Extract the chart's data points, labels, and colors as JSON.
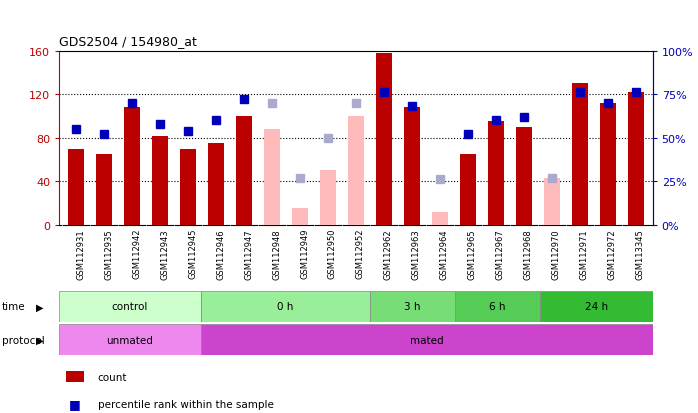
{
  "title": "GDS2504 / 154980_at",
  "samples": [
    "GSM112931",
    "GSM112935",
    "GSM112942",
    "GSM112943",
    "GSM112945",
    "GSM112946",
    "GSM112947",
    "GSM112948",
    "GSM112949",
    "GSM112950",
    "GSM112952",
    "GSM112962",
    "GSM112963",
    "GSM112964",
    "GSM112965",
    "GSM112967",
    "GSM112968",
    "GSM112970",
    "GSM112971",
    "GSM112972",
    "GSM113345"
  ],
  "count_values": [
    70,
    65,
    108,
    82,
    70,
    75,
    100,
    null,
    null,
    null,
    null,
    158,
    108,
    null,
    65,
    95,
    90,
    null,
    130,
    112,
    122
  ],
  "count_absent": [
    null,
    null,
    null,
    null,
    null,
    null,
    null,
    88,
    15,
    50,
    100,
    null,
    null,
    12,
    null,
    null,
    null,
    43,
    null,
    null,
    null
  ],
  "rank_values": [
    55,
    52,
    70,
    58,
    54,
    60,
    72,
    null,
    null,
    null,
    null,
    76,
    68,
    null,
    52,
    60,
    62,
    null,
    76,
    70,
    76
  ],
  "rank_absent": [
    null,
    null,
    null,
    null,
    null,
    null,
    null,
    70,
    27,
    50,
    70,
    null,
    null,
    26,
    null,
    null,
    null,
    27,
    null,
    null,
    null
  ],
  "ylim_left": [
    0,
    160
  ],
  "ylim_right": [
    0,
    100
  ],
  "yticks_left": [
    0,
    40,
    80,
    120,
    160
  ],
  "yticks_right": [
    0,
    25,
    50,
    75,
    100
  ],
  "ytick_labels_left": [
    "0",
    "40",
    "80",
    "120",
    "160"
  ],
  "ytick_labels_right": [
    "0%",
    "25%",
    "50%",
    "75%",
    "100%"
  ],
  "bar_color": "#bb0000",
  "bar_absent_color": "#ffbbbb",
  "rank_color": "#0000bb",
  "rank_absent_color": "#aaaacc",
  "bg_color": "#ffffff",
  "time_groups": [
    {
      "label": "control",
      "start": 0,
      "end": 5,
      "color": "#ccffcc"
    },
    {
      "label": "0 h",
      "start": 5,
      "end": 11,
      "color": "#99ee99"
    },
    {
      "label": "3 h",
      "start": 11,
      "end": 14,
      "color": "#77dd77"
    },
    {
      "label": "6 h",
      "start": 14,
      "end": 17,
      "color": "#55cc55"
    },
    {
      "label": "24 h",
      "start": 17,
      "end": 21,
      "color": "#33bb33"
    }
  ],
  "protocol_groups": [
    {
      "label": "unmated",
      "start": 0,
      "end": 5,
      "color": "#ee88ee"
    },
    {
      "label": "mated",
      "start": 5,
      "end": 21,
      "color": "#cc44cc"
    }
  ],
  "bar_width": 0.55,
  "marker_size": 6,
  "figsize": [
    6.98,
    4.14
  ],
  "dpi": 100
}
